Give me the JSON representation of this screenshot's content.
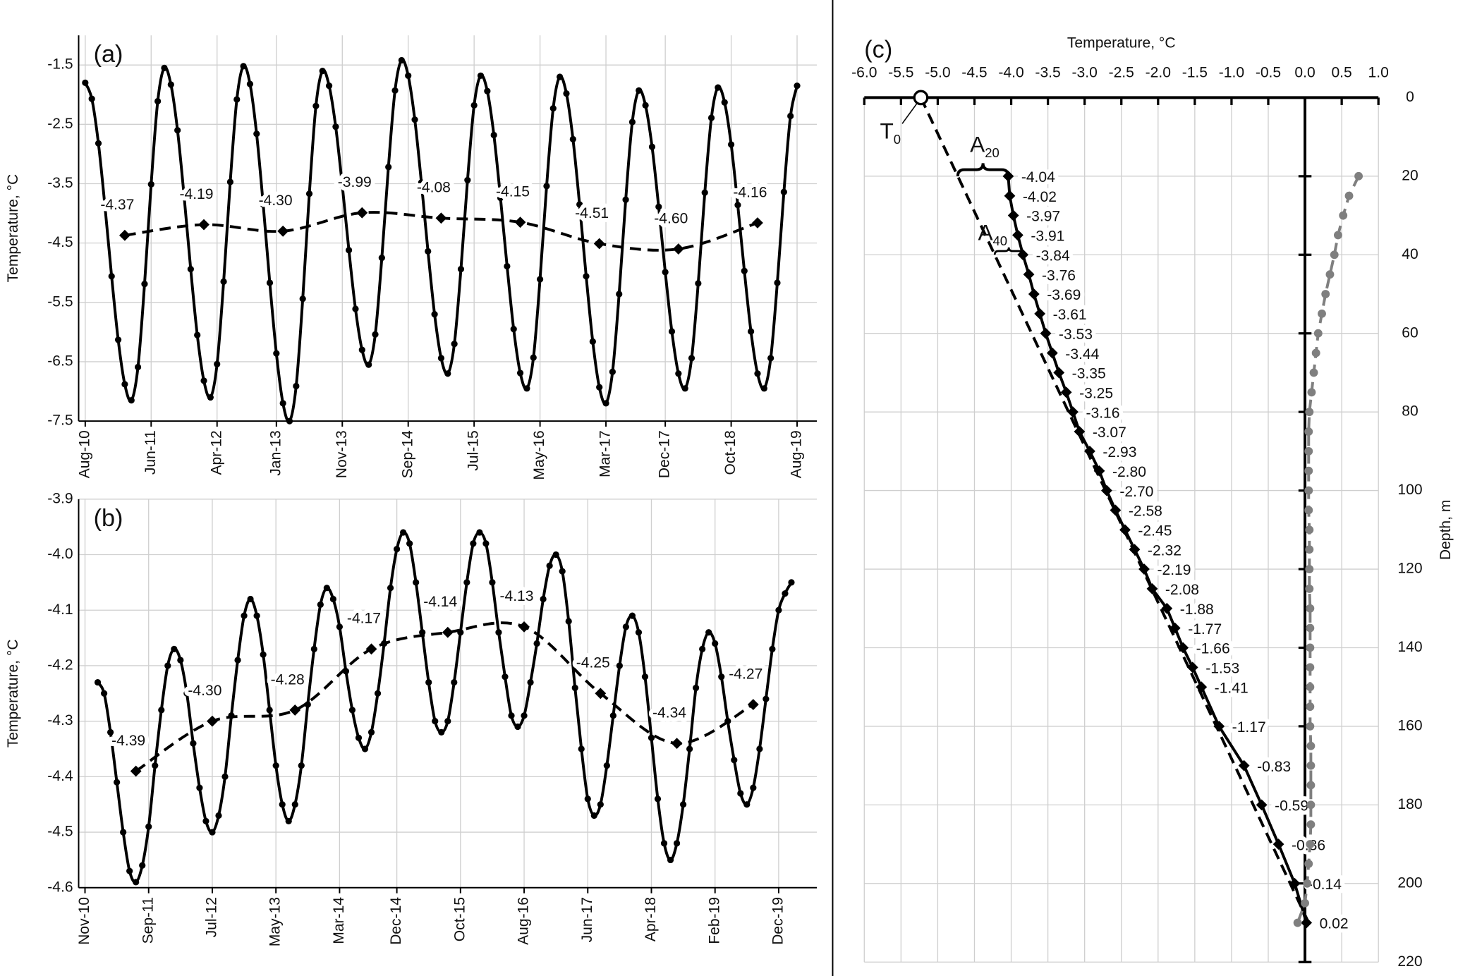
{
  "chart_data": [
    {
      "type": "line",
      "label": "(a)",
      "ylabel": "Temperature, °C",
      "xlim": [
        "2010-07",
        "2019-11"
      ],
      "xticks": [
        {
          "value": "2010-08",
          "label": "Aug-10"
        },
        {
          "value": "2011-06",
          "label": "Jun-11"
        },
        {
          "value": "2012-04",
          "label": "Apr-12"
        },
        {
          "value": "2013-01",
          "label": "Jan-13"
        },
        {
          "value": "2013-11",
          "label": "Nov-13"
        },
        {
          "value": "2014-09",
          "label": "Sep-14"
        },
        {
          "value": "2015-07",
          "label": "Jul-15"
        },
        {
          "value": "2016-05",
          "label": "May-16"
        },
        {
          "value": "2017-03",
          "label": "Mar-17"
        },
        {
          "value": "2017-12",
          "label": "Dec-17"
        },
        {
          "value": "2018-10",
          "label": "Oct-18"
        },
        {
          "value": "2019-08",
          "label": "Aug-19"
        }
      ],
      "ylim": [
        -7.5,
        -1.0
      ],
      "yticks": [
        -1.5,
        -2.5,
        -3.5,
        -4.5,
        -5.5,
        -6.5,
        -7.5
      ],
      "grid": true,
      "series": [
        {
          "color": "#000000",
          "marker": "circle",
          "dash": false,
          "x": [
            "2010-08",
            "2010-09",
            "2010-10",
            "2010-11",
            "2010-12",
            "2011-01",
            "2011-02",
            "2011-03",
            "2011-04",
            "2011-05",
            "2011-06",
            "2011-07",
            "2011-08",
            "2011-09",
            "2011-10",
            "2011-11",
            "2011-12",
            "2012-01",
            "2012-02",
            "2012-03",
            "2012-04",
            "2012-05",
            "2012-06",
            "2012-07",
            "2012-08",
            "2012-09",
            "2012-10",
            "2012-11",
            "2012-12",
            "2013-01",
            "2013-02",
            "2013-03",
            "2013-04",
            "2013-05",
            "2013-06",
            "2013-07",
            "2013-08",
            "2013-09",
            "2013-10",
            "2013-11",
            "2013-12",
            "2014-01",
            "2014-02",
            "2014-03",
            "2014-04",
            "2014-05",
            "2014-06",
            "2014-07",
            "2014-08",
            "2014-09",
            "2014-10",
            "2014-11",
            "2014-12",
            "2015-01",
            "2015-02",
            "2015-03",
            "2015-04",
            "2015-05",
            "2015-06",
            "2015-07",
            "2015-08",
            "2015-09",
            "2015-10",
            "2015-11",
            "2015-12",
            "2016-01",
            "2016-02",
            "2016-03",
            "2016-04",
            "2016-05",
            "2016-06",
            "2016-07",
            "2016-08",
            "2016-09",
            "2016-10",
            "2016-11",
            "2016-12",
            "2017-01",
            "2017-02",
            "2017-03",
            "2017-04",
            "2017-05",
            "2017-06",
            "2017-07",
            "2017-08",
            "2017-09",
            "2017-10",
            "2017-11",
            "2017-12",
            "2018-01",
            "2018-02",
            "2018-03",
            "2018-04",
            "2018-05",
            "2018-06",
            "2018-07",
            "2018-08",
            "2018-09",
            "2018-10",
            "2018-11",
            "2018-12",
            "2019-01",
            "2019-02",
            "2019-03",
            "2019-04",
            "2019-05",
            "2019-06",
            "2019-07",
            "2019-08"
          ],
          "values": [
            -1.8,
            -2.07,
            -2.82,
            -3.89,
            -5.06,
            -6.13,
            -6.88,
            -7.15,
            -6.59,
            -5.19,
            -3.51,
            -2.11,
            -1.55,
            -1.83,
            -2.6,
            -3.71,
            -4.94,
            -6.05,
            -6.82,
            -7.1,
            -6.54,
            -5.15,
            -3.47,
            -2.08,
            -1.52,
            -1.82,
            -2.66,
            -3.85,
            -5.17,
            -6.36,
            -7.2,
            -7.5,
            -6.91,
            -5.44,
            -3.67,
            -2.19,
            -1.6,
            -1.85,
            -2.54,
            -3.53,
            -4.62,
            -5.61,
            -6.3,
            -6.55,
            -6.04,
            -4.75,
            -3.22,
            -1.93,
            -1.42,
            -1.68,
            -2.42,
            -3.48,
            -4.64,
            -5.7,
            -6.44,
            -6.7,
            -6.2,
            -4.94,
            -3.44,
            -2.18,
            -1.68,
            -1.94,
            -2.68,
            -3.74,
            -4.89,
            -5.95,
            -6.69,
            -6.95,
            -6.43,
            -5.11,
            -3.54,
            -2.23,
            -1.7,
            -1.98,
            -2.75,
            -3.85,
            -5.06,
            -6.16,
            -6.93,
            -7.2,
            -6.67,
            -5.36,
            -3.77,
            -2.46,
            -1.93,
            -2.18,
            -2.88,
            -3.89,
            -4.99,
            -5.99,
            -6.7,
            -6.95,
            -6.44,
            -5.18,
            -3.65,
            -2.39,
            -1.88,
            -2.13,
            -2.84,
            -3.86,
            -4.97,
            -5.99,
            -6.7,
            -6.95,
            -6.44,
            -5.17,
            -3.64,
            -2.36,
            -1.85
          ]
        },
        {
          "color": "#000000",
          "marker": "diamond",
          "dash": true,
          "x": [
            "2011-02",
            "2012-02",
            "2013-02",
            "2014-02",
            "2015-02",
            "2016-02",
            "2017-02",
            "2018-02",
            "2019-02"
          ],
          "values": [
            -4.37,
            -4.19,
            -4.3,
            -3.99,
            -4.08,
            -4.15,
            -4.51,
            -4.6,
            -4.16
          ],
          "value_labels": [
            "-4.37",
            "-4.19",
            "-4.30",
            "-3.99",
            "-4.08",
            "-4.15",
            "-4.51",
            "-4.60",
            "-4.16"
          ]
        }
      ]
    },
    {
      "type": "line",
      "label": "(b)",
      "ylabel": "Temperature, °C",
      "xlim": [
        "2010-10",
        "2020-06"
      ],
      "xticks": [
        {
          "value": "2010-11",
          "label": "Nov-10"
        },
        {
          "value": "2011-09",
          "label": "Sep-11"
        },
        {
          "value": "2012-07",
          "label": "Jul-12"
        },
        {
          "value": "2013-05",
          "label": "May-13"
        },
        {
          "value": "2014-03",
          "label": "Mar-14"
        },
        {
          "value": "2014-12",
          "label": "Dec-14"
        },
        {
          "value": "2015-10",
          "label": "Oct-15"
        },
        {
          "value": "2016-08",
          "label": "Aug-16"
        },
        {
          "value": "2017-06",
          "label": "Jun-17"
        },
        {
          "value": "2018-04",
          "label": "Apr-18"
        },
        {
          "value": "2019-02",
          "label": "Feb-19"
        },
        {
          "value": "2019-12",
          "label": "Dec-19"
        }
      ],
      "ylim": [
        -4.6,
        -3.9
      ],
      "yticks": [
        -3.9,
        {
          "value": -4,
          "label": "-4.0"
        },
        -4.1,
        -4.2,
        -4.3,
        -4.4,
        -4.5,
        -4.6
      ],
      "grid": true,
      "series": [
        {
          "color": "#000000",
          "marker": "circle",
          "dash": false,
          "x": [
            "2011-01",
            "2011-02",
            "2011-03",
            "2011-04",
            "2011-05",
            "2011-06",
            "2011-07",
            "2011-08",
            "2011-09",
            "2011-10",
            "2011-11",
            "2011-12",
            "2012-01",
            "2012-02",
            "2012-03",
            "2012-04",
            "2012-05",
            "2012-06",
            "2012-07",
            "2012-08",
            "2012-09",
            "2012-10",
            "2012-11",
            "2012-12",
            "2013-01",
            "2013-02",
            "2013-03",
            "2013-04",
            "2013-05",
            "2013-06",
            "2013-07",
            "2013-08",
            "2013-09",
            "2013-10",
            "2013-11",
            "2013-12",
            "2014-01",
            "2014-02",
            "2014-03",
            "2014-04",
            "2014-05",
            "2014-06",
            "2014-07",
            "2014-08",
            "2014-09",
            "2014-10",
            "2014-11",
            "2014-12",
            "2015-01",
            "2015-02",
            "2015-03",
            "2015-04",
            "2015-05",
            "2015-06",
            "2015-07",
            "2015-08",
            "2015-09",
            "2015-10",
            "2015-11",
            "2015-12",
            "2016-01",
            "2016-02",
            "2016-03",
            "2016-04",
            "2016-05",
            "2016-06",
            "2016-07",
            "2016-08",
            "2016-09",
            "2016-10",
            "2016-11",
            "2016-12",
            "2017-01",
            "2017-02",
            "2017-03",
            "2017-04",
            "2017-05",
            "2017-06",
            "2017-07",
            "2017-08",
            "2017-09",
            "2017-10",
            "2017-11",
            "2017-12",
            "2018-01",
            "2018-02",
            "2018-03",
            "2018-04",
            "2018-05",
            "2018-06",
            "2018-07",
            "2018-08",
            "2018-09",
            "2018-10",
            "2018-11",
            "2018-12",
            "2019-01",
            "2019-02",
            "2019-03",
            "2019-04",
            "2019-05",
            "2019-06",
            "2019-07",
            "2019-08",
            "2019-09",
            "2019-10",
            "2019-11",
            "2019-12",
            "2020-01",
            "2020-02"
          ],
          "values": [
            -4.23,
            -4.25,
            -4.32,
            -4.41,
            -4.5,
            -4.57,
            -4.59,
            -4.56,
            -4.49,
            -4.38,
            -4.28,
            -4.2,
            -4.17,
            -4.19,
            -4.25,
            -4.34,
            -4.42,
            -4.48,
            -4.5,
            -4.47,
            -4.4,
            -4.29,
            -4.19,
            -4.11,
            -4.08,
            -4.11,
            -4.18,
            -4.28,
            -4.38,
            -4.45,
            -4.48,
            -4.45,
            -4.38,
            -4.27,
            -4.17,
            -4.09,
            -4.06,
            -4.08,
            -4.13,
            -4.21,
            -4.28,
            -4.33,
            -4.35,
            -4.32,
            -4.25,
            -4.16,
            -4.06,
            -3.99,
            -3.96,
            -3.98,
            -4.05,
            -4.14,
            -4.23,
            -4.3,
            -4.32,
            -4.3,
            -4.23,
            -4.14,
            -4.05,
            -3.98,
            -3.96,
            -3.98,
            -4.05,
            -4.14,
            -4.22,
            -4.29,
            -4.31,
            -4.29,
            -4.23,
            -4.16,
            -4.08,
            -4.02,
            -4.0,
            -4.03,
            -4.12,
            -4.24,
            -4.35,
            -4.44,
            -4.47,
            -4.45,
            -4.38,
            -4.29,
            -4.2,
            -4.13,
            -4.11,
            -4.14,
            -4.22,
            -4.33,
            -4.44,
            -4.52,
            -4.55,
            -4.52,
            -4.45,
            -4.35,
            -4.24,
            -4.17,
            -4.14,
            -4.16,
            -4.22,
            -4.3,
            -4.37,
            -4.43,
            -4.45,
            -4.42,
            -4.35,
            -4.26,
            -4.17,
            -4.1,
            -4.07,
            -4.05
          ]
        },
        {
          "color": "#000000",
          "marker": "diamond",
          "dash": true,
          "x": [
            "2011-07",
            "2012-07",
            "2013-08",
            "2014-08",
            "2015-08",
            "2016-08",
            "2017-08",
            "2018-08",
            "2019-08"
          ],
          "values": [
            -4.39,
            -4.3,
            -4.28,
            -4.17,
            -4.14,
            -4.13,
            -4.25,
            -4.34,
            -4.27
          ],
          "value_labels": [
            "-4.39",
            "-4.30",
            "-4.28",
            "-4.17",
            "-4.14",
            "-4.13",
            "-4.25",
            "-4.34",
            "-4.27"
          ]
        }
      ]
    },
    {
      "type": "profile",
      "label": "(c)",
      "xlabel": "Temperature, °C",
      "ylabel": "Depth, m",
      "xlim": [
        -6,
        1
      ],
      "xticks": [
        {
          "value": -6,
          "label": "-6.0"
        },
        -5.5,
        {
          "value": -5,
          "label": "-5.0"
        },
        -4.5,
        {
          "value": -4,
          "label": "-4.0"
        },
        -3.5,
        {
          "value": -3,
          "label": "-3.0"
        },
        -2.5,
        {
          "value": -2,
          "label": "-2.0"
        },
        -1.5,
        {
          "value": -1,
          "label": "-1.0"
        },
        -0.5,
        {
          "value": 0,
          "label": "0.0"
        },
        0.5,
        {
          "value": 1,
          "label": "1.0"
        }
      ],
      "ylim": [
        0,
        220
      ],
      "yticks": [
        0,
        20,
        40,
        60,
        80,
        100,
        120,
        140,
        160,
        180,
        200,
        220
      ],
      "grid": true,
      "series": [
        {
          "color": "#000000",
          "marker": "open-circle",
          "dash": true,
          "depths": [
            0,
            210
          ],
          "values": [
            -5.23,
            0.05
          ]
        },
        {
          "color": "#000000",
          "marker": "diamond",
          "dash": false,
          "depths": [
            20,
            25,
            30,
            35,
            40,
            45,
            50,
            55,
            60,
            65,
            70,
            75,
            80,
            85,
            90,
            95,
            100,
            105,
            110,
            115,
            120,
            125,
            130,
            135,
            140,
            145,
            150,
            160,
            170,
            180,
            190,
            200,
            210
          ],
          "values": [
            -4.04,
            -4.02,
            -3.97,
            -3.91,
            -3.84,
            -3.76,
            -3.69,
            -3.61,
            -3.53,
            -3.44,
            -3.35,
            -3.25,
            -3.16,
            -3.07,
            -2.93,
            -2.8,
            -2.7,
            -2.58,
            -2.45,
            -2.32,
            -2.19,
            -2.08,
            -1.88,
            -1.77,
            -1.66,
            -1.53,
            -1.41,
            -1.17,
            -0.83,
            -0.59,
            -0.36,
            -0.14,
            0.02
          ],
          "value_labels": [
            "-4.04",
            "-4.02",
            "-3.97",
            "-3.91",
            "-3.84",
            "-3.76",
            "-3.69",
            "-3.61",
            "-3.53",
            "-3.44",
            "-3.35",
            "-3.25",
            "-3.16",
            "-3.07",
            "-2.93",
            "-2.80",
            "-2.70",
            "-2.58",
            "-2.45",
            "-2.32",
            "-2.19",
            "-2.08",
            "-1.88",
            "-1.77",
            "-1.66",
            "-1.53",
            "-1.41",
            "-1.17",
            "-0.83",
            "-0.59",
            "-0.36",
            "-0.14",
            "0.02"
          ]
        },
        {
          "color": "#7f7f7f",
          "marker": "circle",
          "dash": true,
          "depths": [
            20,
            25,
            30,
            35,
            40,
            45,
            50,
            55,
            60,
            65,
            70,
            75,
            80,
            85,
            90,
            95,
            100,
            105,
            110,
            115,
            120,
            125,
            130,
            135,
            140,
            145,
            150,
            155,
            160,
            165,
            170,
            175,
            180,
            185,
            190,
            195,
            200,
            205,
            210
          ],
          "values": [
            0.73,
            0.6,
            0.52,
            0.45,
            0.4,
            0.34,
            0.28,
            0.23,
            0.18,
            0.15,
            0.12,
            0.09,
            0.06,
            0.05,
            0.05,
            0.05,
            0.05,
            0.05,
            0.06,
            0.06,
            0.06,
            0.06,
            0.07,
            0.07,
            0.07,
            0.07,
            0.07,
            0.07,
            0.07,
            0.08,
            0.08,
            0.08,
            0.08,
            0.08,
            0.07,
            0.05,
            0.03,
            0.0,
            -0.1
          ]
        }
      ],
      "annotations": [
        {
          "text": "T",
          "sub": "0"
        },
        {
          "text": "A",
          "sub": "20"
        },
        {
          "text": "A",
          "sub": "40"
        }
      ]
    }
  ]
}
